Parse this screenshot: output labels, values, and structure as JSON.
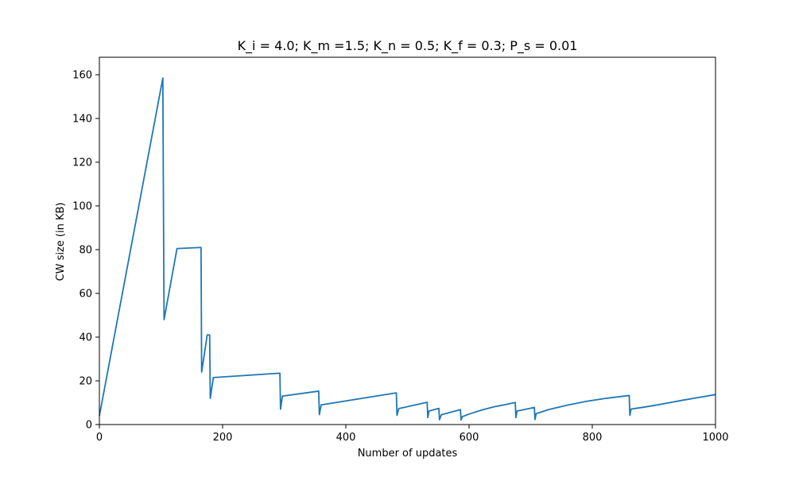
{
  "chart_data": {
    "type": "line",
    "title": "K_i = 4.0; K_m =1.5; K_n = 0.5; K_f = 0.3; P_s = 0.01",
    "xlabel": "Number of updates",
    "ylabel": "CW size (in KB)",
    "xlim": [
      0,
      1000
    ],
    "ylim": [
      0,
      168
    ],
    "x_ticks": [
      0,
      200,
      400,
      600,
      800,
      1000
    ],
    "y_ticks": [
      0,
      20,
      40,
      60,
      80,
      100,
      120,
      140,
      160
    ],
    "grid": false,
    "line_color": "#1f77b4",
    "series": [
      {
        "x": [
          0,
          103,
          104,
          105,
          126,
          165,
          166,
          175,
          179,
          180,
          185,
          293,
          294,
          297,
          356,
          357,
          360,
          482,
          483,
          486,
          532,
          533,
          535,
          551,
          552,
          555,
          586,
          587,
          589,
          600,
          620,
          640,
          660,
          675,
          676,
          678,
          706,
          707,
          709,
          730,
          760,
          790,
          820,
          860,
          861,
          863,
          880,
          900,
          925,
          950,
          975,
          1000
        ],
        "y": [
          4,
          158.5,
          100,
          48,
          80.5,
          81,
          24,
          41,
          41,
          12,
          21.5,
          23.5,
          7,
          13,
          15.3,
          4.5,
          9,
          14.5,
          4.2,
          7.3,
          10.2,
          3.2,
          6.2,
          7.4,
          2.2,
          4.5,
          6.8,
          2.1,
          3.6,
          4.8,
          6.6,
          8.1,
          9.2,
          10.1,
          3.2,
          6.2,
          7.8,
          2.3,
          5.0,
          6.9,
          8.9,
          10.6,
          11.9,
          13.3,
          4.2,
          7.1,
          7.8,
          8.7,
          10.0,
          11.3,
          12.5,
          13.7
        ]
      }
    ]
  }
}
